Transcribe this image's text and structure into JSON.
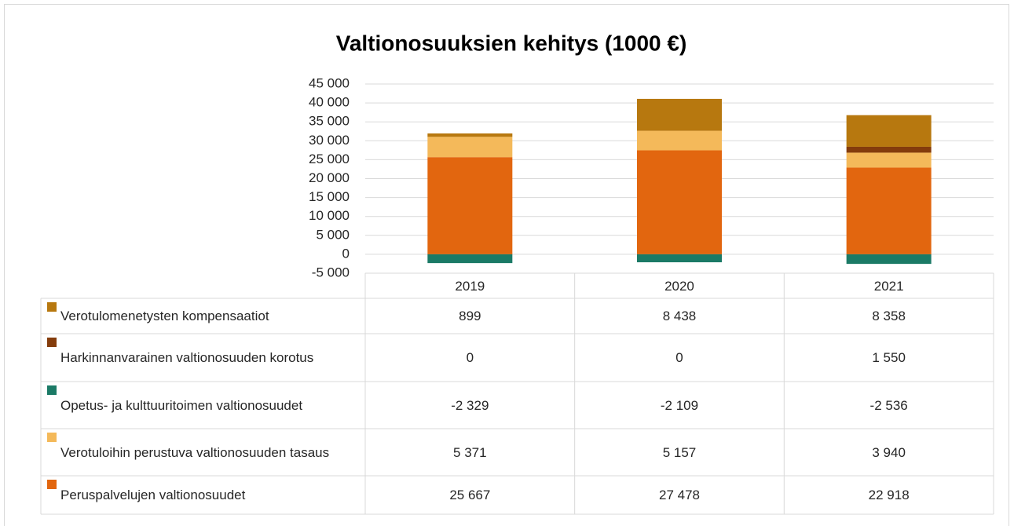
{
  "chart_data": {
    "type": "stacked-bar",
    "title": "Valtionosuuksien kehitys (1000 €)",
    "categories": [
      "2019",
      "2020",
      "2021"
    ],
    "series": [
      {
        "name": "Verotulomenetysten kompensaatiot",
        "color": "#b7780f",
        "values": [
          899,
          8438,
          8358
        ],
        "value_labels": [
          "899",
          "8 438",
          "8 358"
        ]
      },
      {
        "name": "Harkinnanvarainen valtionosuuden korotus",
        "color": "#843c0c",
        "values": [
          0,
          0,
          1550
        ],
        "value_labels": [
          "0",
          "0",
          "1 550"
        ]
      },
      {
        "name": "Opetus- ja kulttuuritoimen valtionosuudet",
        "color": "#1b7a66",
        "values": [
          -2329,
          -2109,
          -2536
        ],
        "value_labels": [
          "-2 329",
          "-2 109",
          "-2 536"
        ]
      },
      {
        "name": "Verotuloihin perustuva valtionosuuden tasaus",
        "color": "#f4b95a",
        "values": [
          5371,
          5157,
          3940
        ],
        "value_labels": [
          "5 371",
          "5 157",
          "3 940"
        ]
      },
      {
        "name": "Peruspalvelujen valtionosuudet",
        "color": "#e2660f",
        "values": [
          25667,
          27478,
          22918
        ],
        "value_labels": [
          "25 667",
          "27 478",
          "22 918"
        ]
      }
    ],
    "ylim": [
      -5000,
      45000
    ],
    "yticks": [
      {
        "value": -5000,
        "label": "-5 000"
      },
      0,
      {
        "value": 5000,
        "label": "5 000"
      },
      {
        "value": 10000,
        "label": "10 000"
      },
      {
        "value": 15000,
        "label": "15 000"
      },
      {
        "value": 20000,
        "label": "20 000"
      },
      {
        "value": 25000,
        "label": "25 000"
      },
      {
        "value": 30000,
        "label": "30 000"
      },
      {
        "value": 35000,
        "label": "35 000"
      },
      {
        "value": 40000,
        "label": "40 000"
      },
      {
        "value": 45000,
        "label": "45 000"
      }
    ],
    "grid": true
  }
}
